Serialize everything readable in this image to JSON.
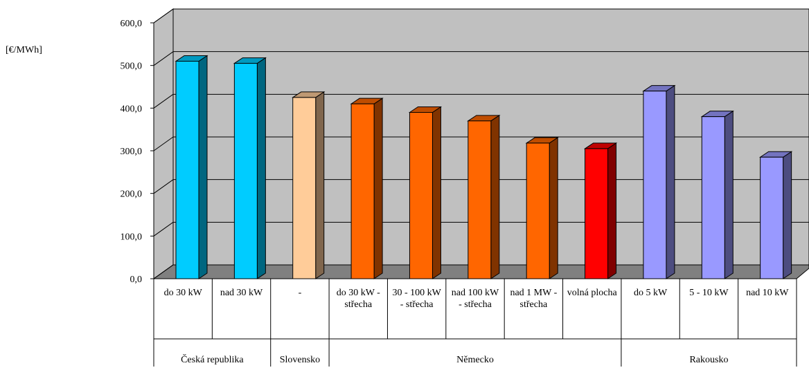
{
  "chart_data": {
    "type": "bar3d",
    "y_label": "[€/MWh]",
    "categories": [
      "do 30 kW",
      "nad 30 kW",
      "-",
      "do 30 kW - střecha",
      "30 - 100 kW - střecha",
      "nad 100 kW - střecha",
      "nad 1 MW - střecha",
      "volná plocha",
      "do 5 kW",
      "5 - 10 kW",
      "nad 10 kW"
    ],
    "groups": [
      {
        "name": "Česká republika",
        "span": [
          0,
          1
        ]
      },
      {
        "name": "Slovensko",
        "span": [
          2,
          2
        ]
      },
      {
        "name": "Německo",
        "span": [
          3,
          7
        ]
      },
      {
        "name": "Rakousko",
        "span": [
          8,
          10
        ]
      }
    ],
    "values": [
      510,
      505,
      425,
      410,
      390,
      370,
      318,
      305,
      440,
      380,
      285
    ],
    "colors": [
      "#00ccff",
      "#00ccff",
      "#ffcc99",
      "#ff6600",
      "#ff6600",
      "#ff6600",
      "#ff6600",
      "#ff0000",
      "#9999ff",
      "#9999ff",
      "#9999ff"
    ],
    "ylim": [
      0,
      600
    ],
    "yticks": [
      {
        "value": 0,
        "label": "0,0"
      },
      {
        "value": 100,
        "label": "100,0"
      },
      {
        "value": 200,
        "label": "200,0"
      },
      {
        "value": 300,
        "label": "300,0"
      },
      {
        "value": 400,
        "label": "400,0"
      },
      {
        "value": 500,
        "label": "500,0"
      },
      {
        "value": 600,
        "label": "600,0"
      }
    ],
    "grid": true
  }
}
